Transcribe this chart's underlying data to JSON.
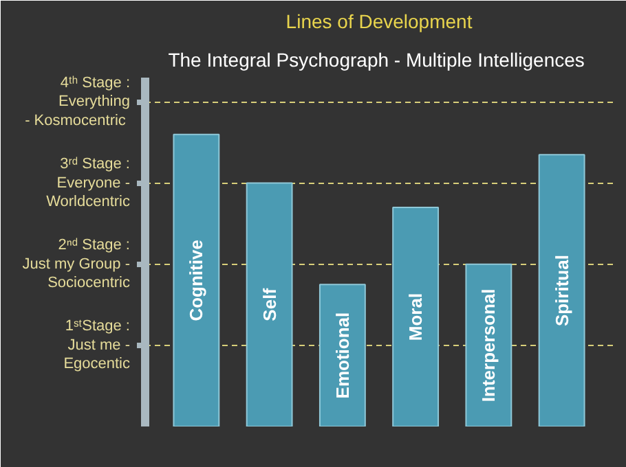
{
  "chart_data": {
    "type": "bar",
    "title": "Lines of Development",
    "subtitle": "The Integral Psychograph -  Multiple Intelligences",
    "categories": [
      "Cognitive",
      "Self",
      "Emotional",
      "Moral",
      "Interpersonal",
      "Spiritual"
    ],
    "values": [
      3.6,
      3.0,
      1.75,
      2.7,
      2.0,
      3.35
    ],
    "color": "#4b9bb3",
    "ylim": [
      0,
      4.3
    ],
    "yticks": [
      {
        "value": 1,
        "label": "1ˢᵗStage :\nJust me -\nEgocentic"
      },
      {
        "value": 2,
        "label": "2ⁿᵈ Stage :\nJust my Group -\nSociocentric"
      },
      {
        "value": 3,
        "label": "3ʳᵈ Stage :\nEveryone -\nWorldcentric"
      },
      {
        "value": 4,
        "label": "4ᵗʰ Stage :\nEverything\n-  Kosmocentric"
      }
    ],
    "grid": "y",
    "line_style": "dashed",
    "tick_labels": "y"
  }
}
